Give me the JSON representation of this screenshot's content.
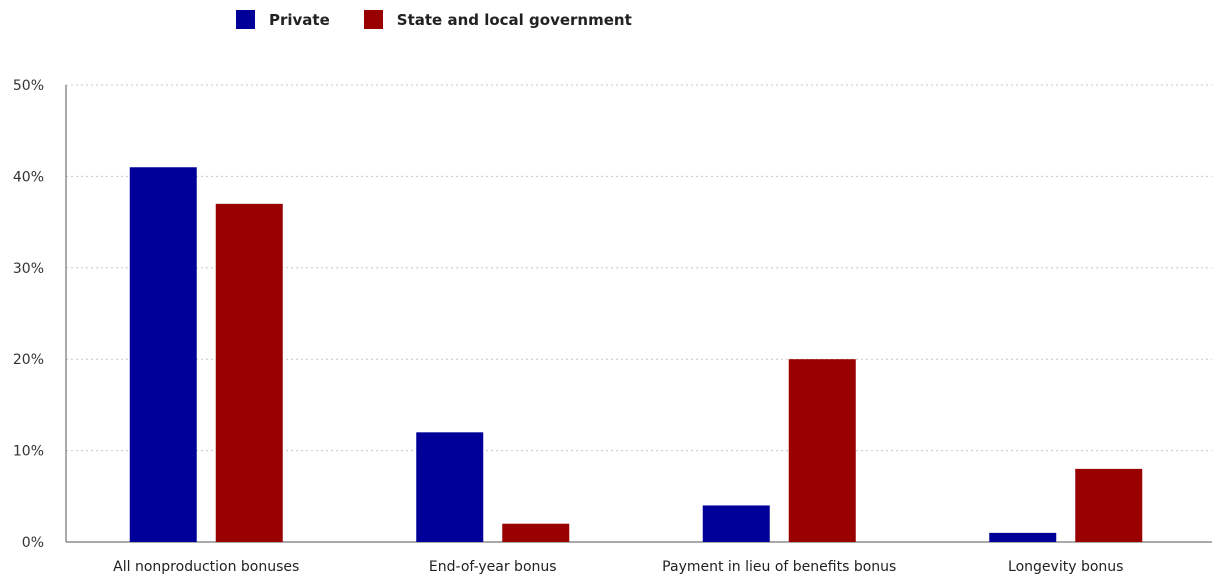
{
  "chart_data": {
    "type": "bar",
    "title": "",
    "xlabel": "",
    "ylabel": "",
    "categories": [
      "All nonproduction bonuses",
      "End-of-year bonus",
      "Payment in lieu of benefits bonus",
      "Longevity bonus"
    ],
    "series": [
      {
        "name": "Private",
        "color": "#000099",
        "values": [
          41,
          12,
          4,
          1
        ]
      },
      {
        "name": "State and local government",
        "color": "#990000",
        "values": [
          37,
          2,
          20,
          8
        ]
      }
    ],
    "ylim": [
      0,
      50
    ],
    "yticks": [
      0,
      10,
      20,
      30,
      40,
      50
    ],
    "ytick_labels": [
      "0%",
      "10%",
      "20%",
      "30%",
      "40%",
      "50%"
    ],
    "grid": true,
    "legend_position": "top-left"
  }
}
